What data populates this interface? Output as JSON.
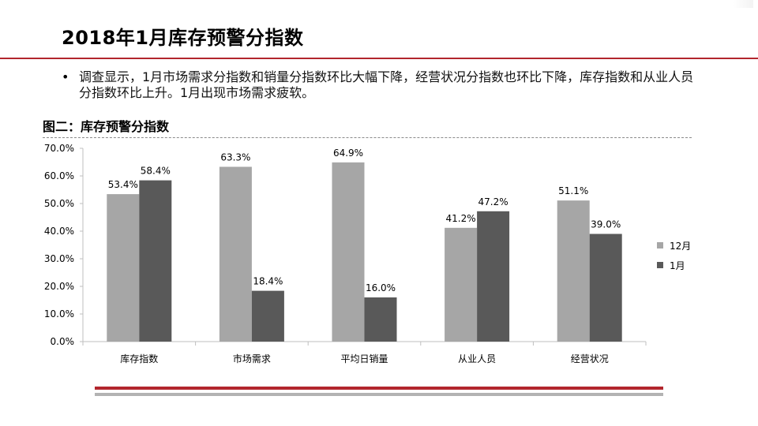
{
  "slide": {
    "title": "2018年1月库存预警分指数",
    "bullet": "调查显示，1月市场需求分指数和销量分指数环比大幅下降，经营状况分指数也环比下降，库存指数和从业人员分指数环比上升。1月出现市场需求疲软。",
    "bullet_marker": "•",
    "chart_caption": "图二：库存预警分指数"
  },
  "colors": {
    "accent_red": "#b2262d",
    "series_dec": "#a6a6a6",
    "series_jan": "#595959",
    "axis": "#bfbfbf"
  },
  "chart_data": {
    "type": "bar",
    "categories": [
      "库存指数",
      "市场需求",
      "平均日销量",
      "从业人员",
      "经营状况"
    ],
    "series": [
      {
        "name": "12月",
        "values": [
          53.4,
          63.3,
          64.9,
          41.2,
          51.1
        ],
        "labels": [
          "53.4%",
          "63.3%",
          "64.9%",
          "41.2%",
          "51.1%"
        ]
      },
      {
        "name": "1月",
        "values": [
          58.4,
          18.4,
          16.0,
          47.2,
          39.0
        ],
        "labels": [
          "58.4%",
          "18.4%",
          "16.0%",
          "47.2%",
          "39.0%"
        ]
      }
    ],
    "ylim": [
      0,
      70
    ],
    "yticks": [
      0,
      10,
      20,
      30,
      40,
      50,
      60,
      70
    ],
    "ytick_labels": [
      "0.0%",
      "10.0%",
      "20.0%",
      "30.0%",
      "40.0%",
      "50.0%",
      "60.0%",
      "70.0%"
    ],
    "grid": false,
    "legend_position": "right"
  }
}
